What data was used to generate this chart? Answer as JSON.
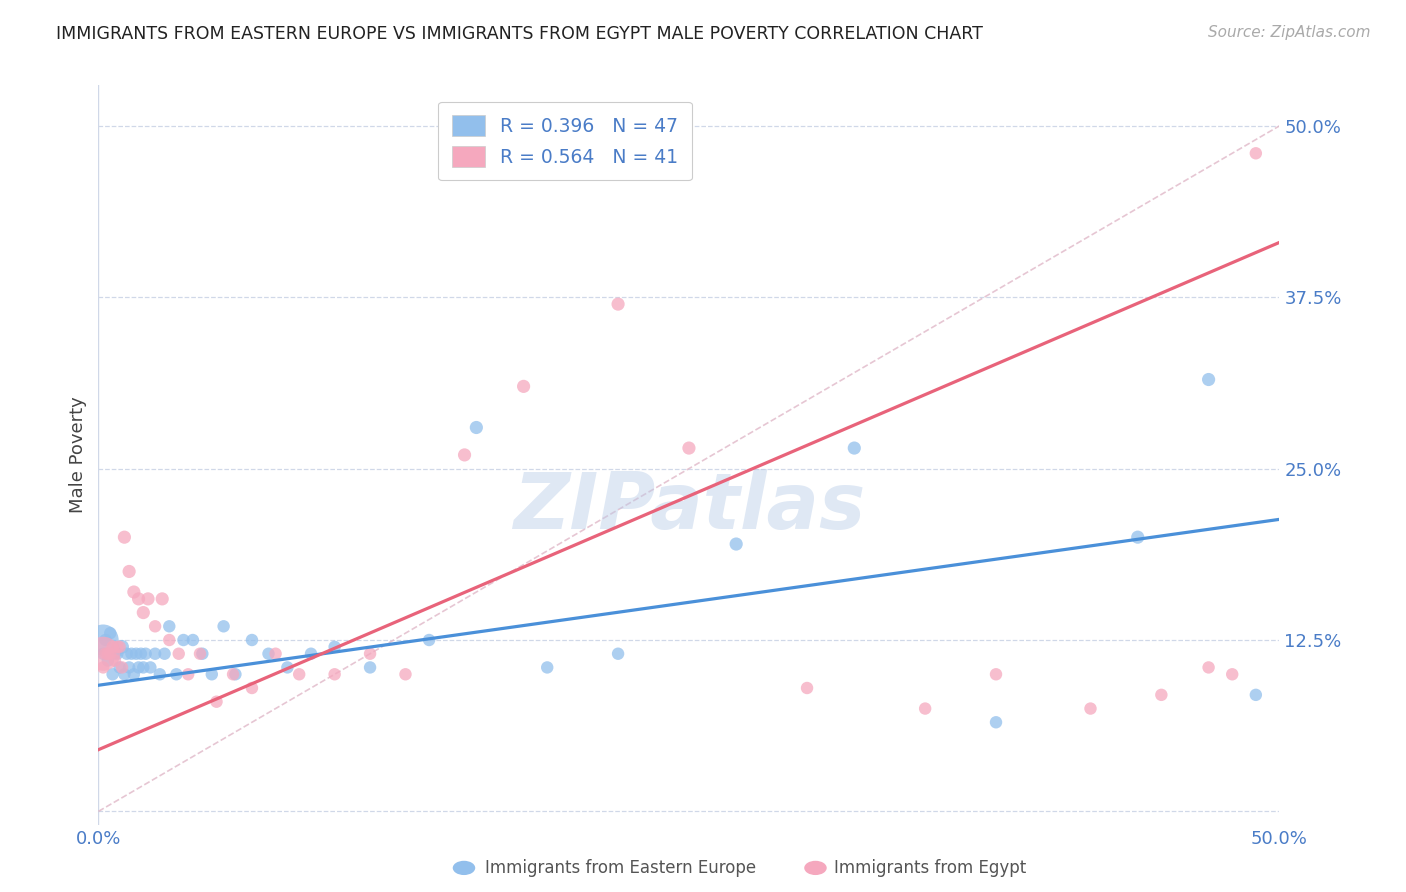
{
  "title": "IMMIGRANTS FROM EASTERN EUROPE VS IMMIGRANTS FROM EGYPT MALE POVERTY CORRELATION CHART",
  "source": "Source: ZipAtlas.com",
  "ylabel": "Male Poverty",
  "y_ticks": [
    0.0,
    0.125,
    0.25,
    0.375,
    0.5
  ],
  "y_tick_labels": [
    "",
    "12.5%",
    "25.0%",
    "37.5%",
    "50.0%"
  ],
  "xlim": [
    0.0,
    0.5
  ],
  "ylim": [
    -0.01,
    0.53
  ],
  "watermark": "ZIPatlas",
  "legend_line1": "R = 0.396   N = 47",
  "legend_line2": "R = 0.564   N = 41",
  "series1_label": "Immigrants from Eastern Europe",
  "series2_label": "Immigrants from Egypt",
  "series1_color": "#92bfec",
  "series2_color": "#f5a8be",
  "series1_line_color": "#4a90d9",
  "series2_line_color": "#e8637a",
  "diagonal_line_color": "#e0b8c8",
  "background_color": "#ffffff",
  "grid_color": "#d0d8e8",
  "title_color": "#222222",
  "tick_label_color": "#4a7cc7",
  "series1_line_x0": 0.0,
  "series1_line_y0": 0.092,
  "series1_line_x1": 0.5,
  "series1_line_y1": 0.213,
  "series2_line_x0": 0.0,
  "series2_line_y0": 0.045,
  "series2_line_x1": 0.5,
  "series2_line_y1": 0.415,
  "series1_x": [
    0.002,
    0.003,
    0.004,
    0.005,
    0.006,
    0.007,
    0.008,
    0.009,
    0.01,
    0.011,
    0.012,
    0.013,
    0.014,
    0.015,
    0.016,
    0.017,
    0.018,
    0.019,
    0.02,
    0.022,
    0.024,
    0.026,
    0.028,
    0.03,
    0.033,
    0.036,
    0.04,
    0.044,
    0.048,
    0.053,
    0.058,
    0.065,
    0.072,
    0.08,
    0.09,
    0.1,
    0.115,
    0.14,
    0.16,
    0.19,
    0.22,
    0.27,
    0.32,
    0.38,
    0.44,
    0.47,
    0.49
  ],
  "series1_y": [
    0.115,
    0.125,
    0.11,
    0.13,
    0.1,
    0.115,
    0.115,
    0.105,
    0.12,
    0.1,
    0.115,
    0.105,
    0.115,
    0.1,
    0.115,
    0.105,
    0.115,
    0.105,
    0.115,
    0.105,
    0.115,
    0.1,
    0.115,
    0.135,
    0.1,
    0.125,
    0.125,
    0.115,
    0.1,
    0.135,
    0.1,
    0.125,
    0.115,
    0.105,
    0.115,
    0.12,
    0.105,
    0.125,
    0.28,
    0.105,
    0.115,
    0.195,
    0.265,
    0.065,
    0.2,
    0.315,
    0.085
  ],
  "series1_sizes": [
    80,
    80,
    80,
    80,
    80,
    80,
    80,
    80,
    100,
    80,
    80,
    80,
    80,
    80,
    80,
    80,
    80,
    80,
    80,
    80,
    80,
    80,
    80,
    80,
    80,
    80,
    80,
    80,
    80,
    80,
    80,
    80,
    80,
    80,
    80,
    80,
    80,
    80,
    90,
    80,
    80,
    90,
    90,
    80,
    90,
    90,
    80
  ],
  "series2_x": [
    0.002,
    0.003,
    0.004,
    0.005,
    0.006,
    0.007,
    0.008,
    0.009,
    0.01,
    0.011,
    0.013,
    0.015,
    0.017,
    0.019,
    0.021,
    0.024,
    0.027,
    0.03,
    0.034,
    0.038,
    0.043,
    0.05,
    0.057,
    0.065,
    0.075,
    0.085,
    0.1,
    0.115,
    0.13,
    0.155,
    0.18,
    0.22,
    0.25,
    0.3,
    0.35,
    0.38,
    0.42,
    0.45,
    0.47,
    0.48,
    0.49
  ],
  "series2_y": [
    0.105,
    0.115,
    0.115,
    0.115,
    0.12,
    0.11,
    0.12,
    0.12,
    0.105,
    0.2,
    0.175,
    0.16,
    0.155,
    0.145,
    0.155,
    0.135,
    0.155,
    0.125,
    0.115,
    0.1,
    0.115,
    0.08,
    0.1,
    0.09,
    0.115,
    0.1,
    0.1,
    0.115,
    0.1,
    0.26,
    0.31,
    0.37,
    0.265,
    0.09,
    0.075,
    0.1,
    0.075,
    0.085,
    0.105,
    0.1,
    0.48
  ],
  "series2_sizes": [
    80,
    80,
    80,
    80,
    80,
    80,
    80,
    80,
    80,
    90,
    90,
    90,
    90,
    90,
    90,
    80,
    90,
    80,
    80,
    80,
    80,
    80,
    80,
    80,
    80,
    80,
    80,
    80,
    80,
    90,
    90,
    90,
    90,
    80,
    80,
    80,
    80,
    80,
    80,
    80,
    80
  ],
  "series1_large_x": [
    0.002
  ],
  "series1_large_y": [
    0.125
  ],
  "series1_large_s": [
    500
  ],
  "series2_large_x": [
    0.002
  ],
  "series2_large_y": [
    0.115
  ],
  "series2_large_s": [
    600
  ]
}
